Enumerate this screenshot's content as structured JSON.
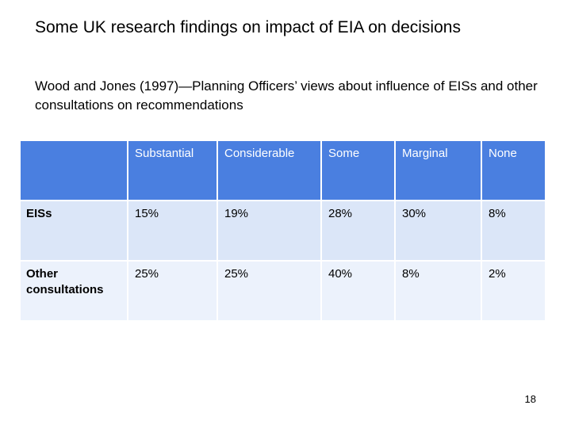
{
  "slide": {
    "title": "Some UK research findings on impact of EIA on decisions",
    "subtitle": "Wood and Jones (1997)—Planning Officers’ views about influence of EISs and other consultations on recommendations",
    "page_number": "18"
  },
  "table": {
    "columns": [
      "",
      "Substantial",
      "Considerable",
      "Some",
      "Marginal",
      "None"
    ],
    "rows": [
      {
        "label": "EISs",
        "values": [
          "15%",
          "19%",
          "28%",
          "30%",
          "8%"
        ]
      },
      {
        "label": "Other consultations",
        "values": [
          "25%",
          "25%",
          "40%",
          "8%",
          "2%"
        ]
      }
    ]
  },
  "colors": {
    "header_background": "#4a7fe0",
    "row_odd_background": "#dbe6f8",
    "row_even_background": "#ecf2fc"
  }
}
